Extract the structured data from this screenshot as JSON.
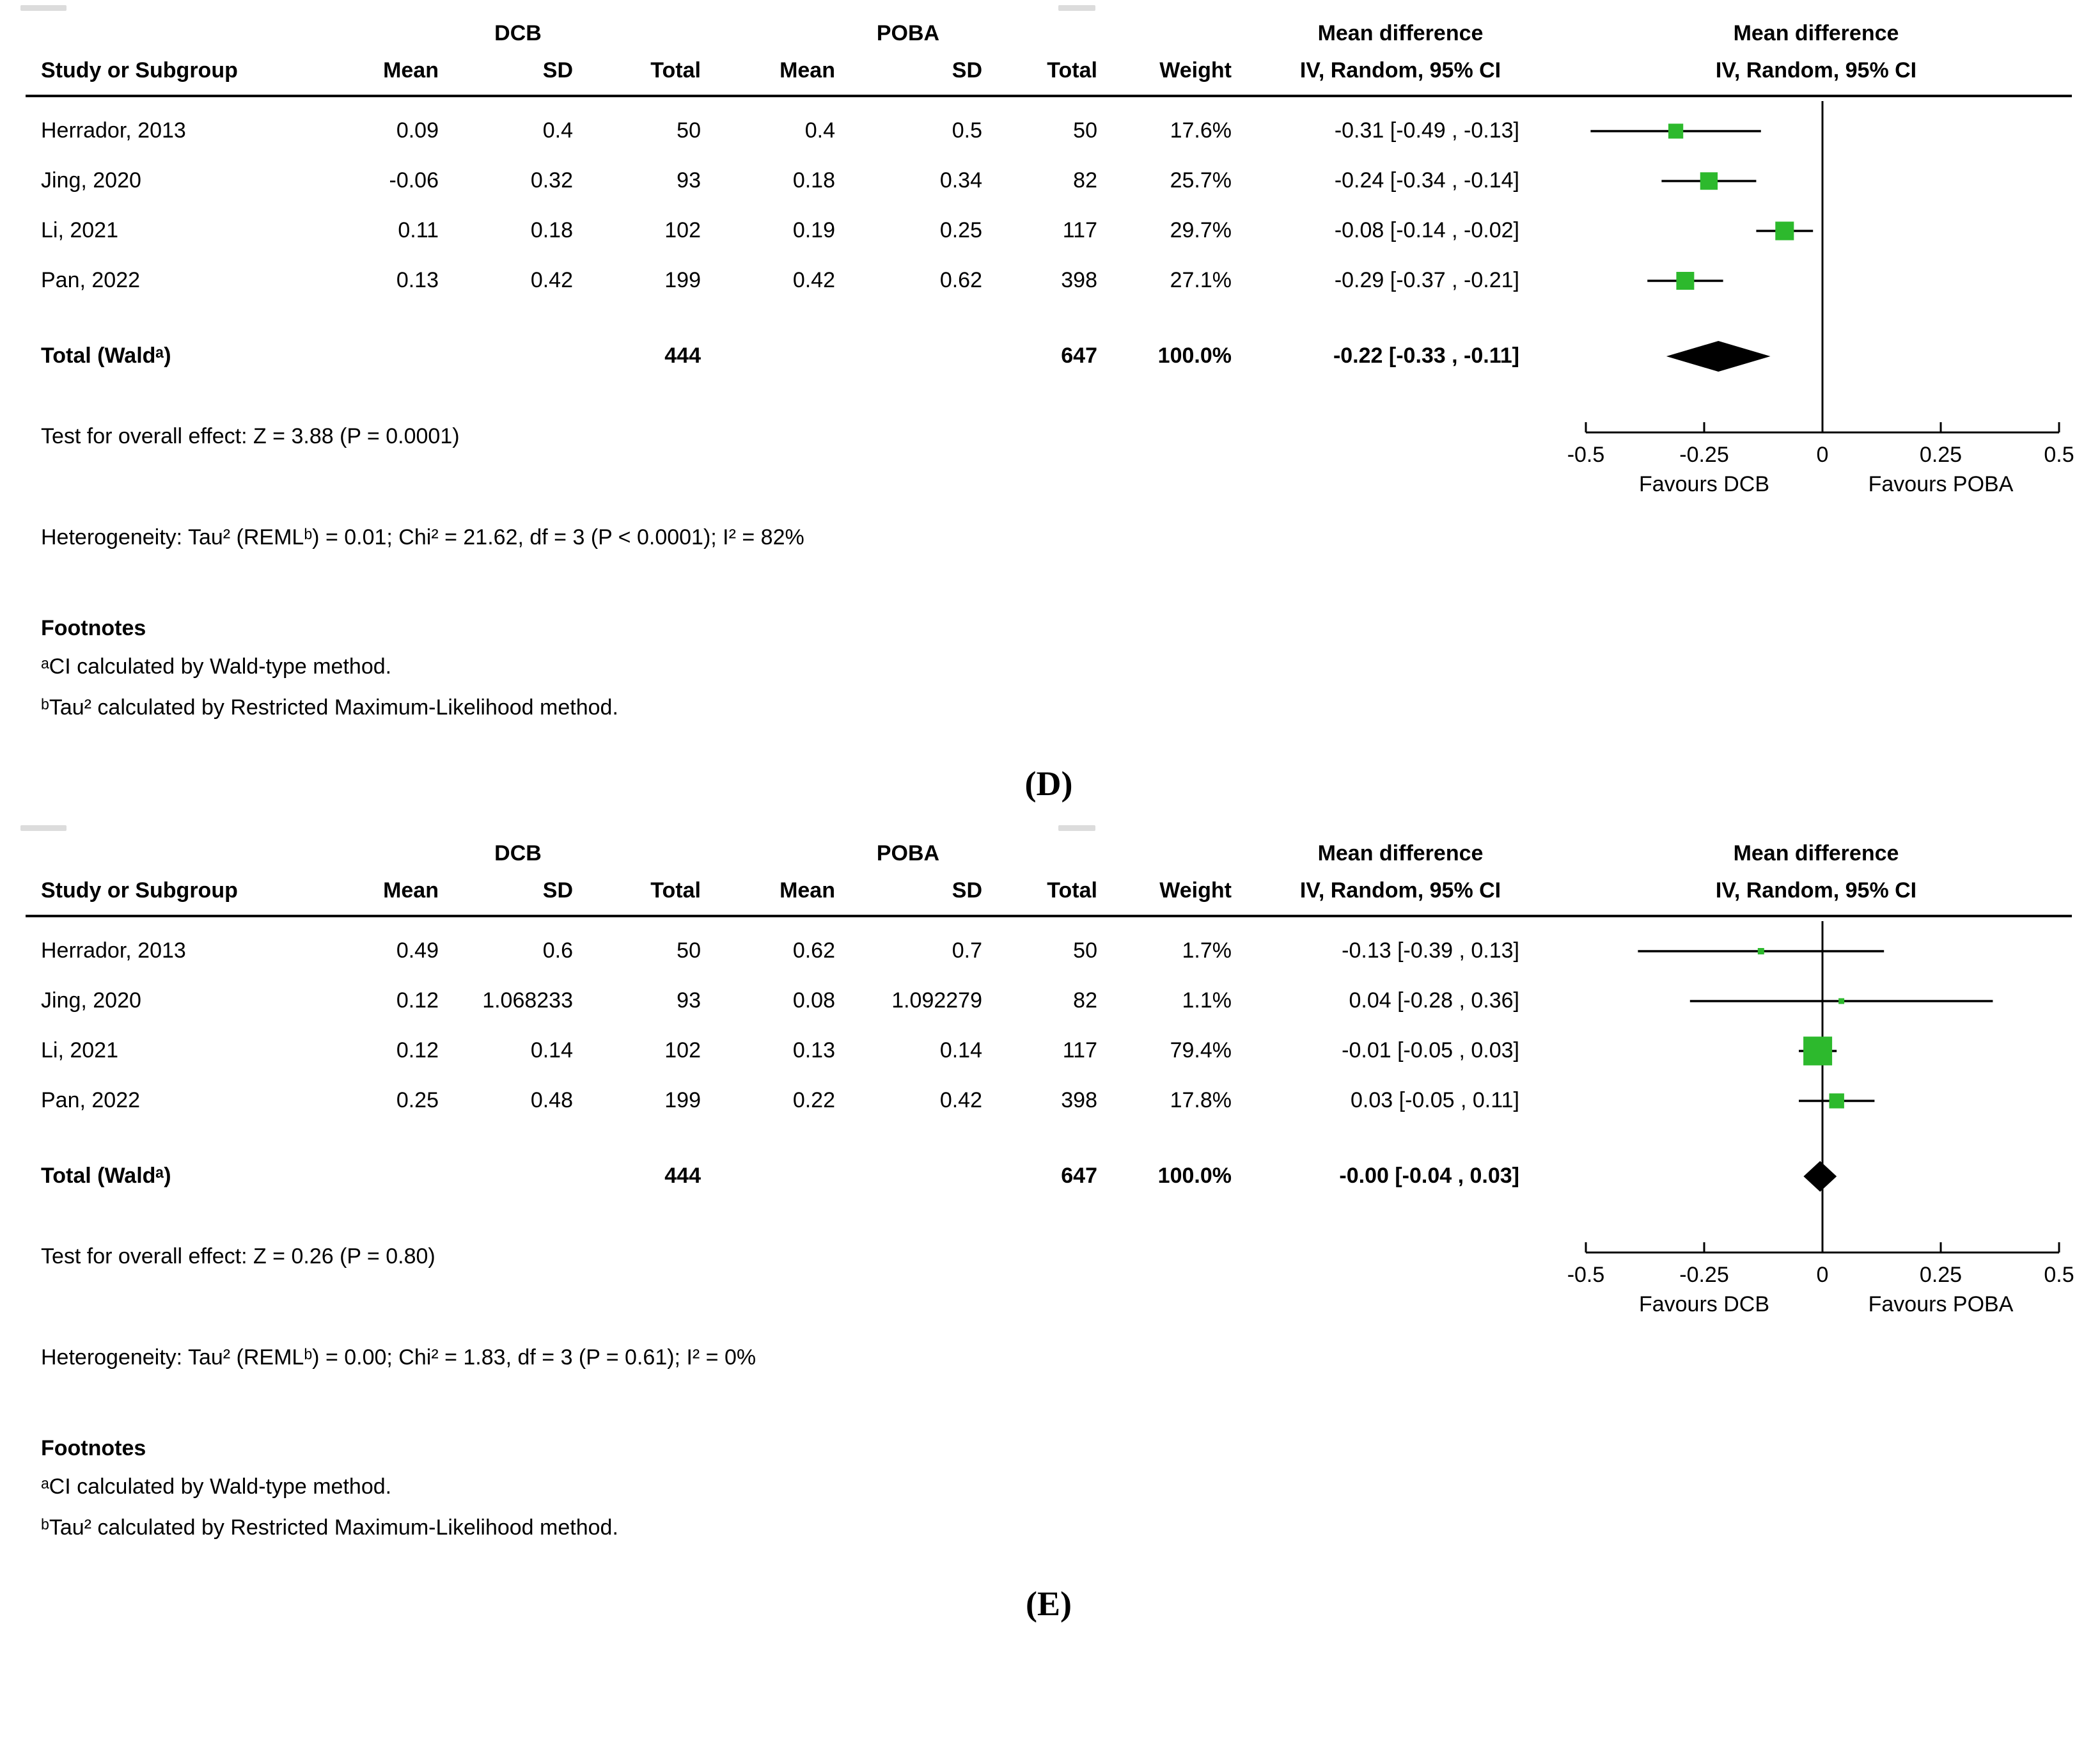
{
  "colors": {
    "marker_green": "#2db92d",
    "diamond_black": "#000000",
    "line_black": "#000000"
  },
  "chart_data": [
    {
      "type": "forest",
      "panel_label": "(D)",
      "groups": {
        "experimental": "DCB",
        "control": "POBA"
      },
      "columns": {
        "study": "Study or Subgroup",
        "mean": "Mean",
        "sd": "SD",
        "total": "Total",
        "weight": "Weight",
        "md_header": "Mean difference",
        "md_sub": "IV, Random, 95% CI"
      },
      "studies": [
        {
          "name": "Herrador, 2013",
          "mean1": "0.09",
          "sd1": "0.4",
          "total1": "50",
          "mean2": "0.4",
          "sd2": "0.5",
          "total2": "50",
          "weight": "17.6%",
          "md": "-0.31 [-0.49 , -0.13]",
          "est": -0.31,
          "lo": -0.49,
          "hi": -0.13,
          "w": 17.6
        },
        {
          "name": "Jing, 2020",
          "mean1": "-0.06",
          "sd1": "0.32",
          "total1": "93",
          "mean2": "0.18",
          "sd2": "0.34",
          "total2": "82",
          "weight": "25.7%",
          "md": "-0.24 [-0.34 , -0.14]",
          "est": -0.24,
          "lo": -0.34,
          "hi": -0.14,
          "w": 25.7
        },
        {
          "name": "Li, 2021",
          "mean1": "0.11",
          "sd1": "0.18",
          "total1": "102",
          "mean2": "0.19",
          "sd2": "0.25",
          "total2": "117",
          "weight": "29.7%",
          "md": "-0.08 [-0.14 , -0.02]",
          "est": -0.08,
          "lo": -0.14,
          "hi": -0.02,
          "w": 29.7
        },
        {
          "name": "Pan, 2022",
          "mean1": "0.13",
          "sd1": "0.42",
          "total1": "199",
          "mean2": "0.42",
          "sd2": "0.62",
          "total2": "398",
          "weight": "27.1%",
          "md": "-0.29 [-0.37 , -0.21]",
          "est": -0.29,
          "lo": -0.37,
          "hi": -0.21,
          "w": 27.1
        }
      ],
      "total": {
        "name": "Total (Waldᵃ)",
        "total1": "444",
        "total2": "647",
        "weight": "100.0%",
        "md": "-0.22 [-0.33 , -0.11]",
        "est": -0.22,
        "lo": -0.33,
        "hi": -0.11
      },
      "effect_test": "Test for overall effect: Z = 3.88 (P = 0.0001)",
      "heterogeneity": "Heterogeneity: Tau² (REMLᵇ) = 0.01; Chi² = 21.62, df = 3 (P < 0.0001); I² = 82%",
      "footnotes_title": "Footnotes",
      "footnotes": [
        "ᵃCI calculated by Wald-type method.",
        "ᵇTau² calculated by Restricted Maximum-Likelihood method."
      ],
      "axis": {
        "min": -0.5,
        "max": 0.5,
        "ticks": [
          -0.5,
          -0.25,
          0,
          0.25,
          0.5
        ],
        "tick_labels": [
          "-0.5",
          "-0.25",
          "0",
          "0.25",
          "0.5"
        ],
        "favours_left": "Favours DCB",
        "favours_right": "Favours POBA"
      }
    },
    {
      "type": "forest",
      "panel_label": "(E)",
      "groups": {
        "experimental": "DCB",
        "control": "POBA"
      },
      "columns": {
        "study": "Study or Subgroup",
        "mean": "Mean",
        "sd": "SD",
        "total": "Total",
        "weight": "Weight",
        "md_header": "Mean difference",
        "md_sub": "IV, Random, 95% CI"
      },
      "studies": [
        {
          "name": "Herrador, 2013",
          "mean1": "0.49",
          "sd1": "0.6",
          "total1": "50",
          "mean2": "0.62",
          "sd2": "0.7",
          "total2": "50",
          "weight": "1.7%",
          "md": "-0.13 [-0.39 , 0.13]",
          "est": -0.13,
          "lo": -0.39,
          "hi": 0.13,
          "w": 1.7
        },
        {
          "name": "Jing, 2020",
          "mean1": "0.12",
          "sd1": "1.068233",
          "total1": "93",
          "mean2": "0.08",
          "sd2": "1.092279",
          "total2": "82",
          "weight": "1.1%",
          "md": "0.04 [-0.28 , 0.36]",
          "est": 0.04,
          "lo": -0.28,
          "hi": 0.36,
          "w": 1.1
        },
        {
          "name": "Li, 2021",
          "mean1": "0.12",
          "sd1": "0.14",
          "total1": "102",
          "mean2": "0.13",
          "sd2": "0.14",
          "total2": "117",
          "weight": "79.4%",
          "md": "-0.01 [-0.05 , 0.03]",
          "est": -0.01,
          "lo": -0.05,
          "hi": 0.03,
          "w": 79.4
        },
        {
          "name": "Pan, 2022",
          "mean1": "0.25",
          "sd1": "0.48",
          "total1": "199",
          "mean2": "0.22",
          "sd2": "0.42",
          "total2": "398",
          "weight": "17.8%",
          "md": "0.03 [-0.05 , 0.11]",
          "est": 0.03,
          "lo": -0.05,
          "hi": 0.11,
          "w": 17.8
        }
      ],
      "total": {
        "name": "Total (Waldᵃ)",
        "total1": "444",
        "total2": "647",
        "weight": "100.0%",
        "md": "-0.00 [-0.04 , 0.03]",
        "est": -0.005,
        "lo": -0.04,
        "hi": 0.03
      },
      "effect_test": "Test for overall effect: Z = 0.26 (P = 0.80)",
      "heterogeneity": "Heterogeneity: Tau² (REMLᵇ) = 0.00; Chi² = 1.83, df = 3 (P = 0.61); I² = 0%",
      "footnotes_title": "Footnotes",
      "footnotes": [
        "ᵃCI calculated by Wald-type method.",
        "ᵇTau² calculated by Restricted Maximum-Likelihood method."
      ],
      "axis": {
        "min": -0.5,
        "max": 0.5,
        "ticks": [
          -0.5,
          -0.25,
          0,
          0.25,
          0.5
        ],
        "tick_labels": [
          "-0.5",
          "-0.25",
          "0",
          "0.25",
          "0.5"
        ],
        "favours_left": "Favours DCB",
        "favours_right": "Favours POBA"
      }
    }
  ]
}
